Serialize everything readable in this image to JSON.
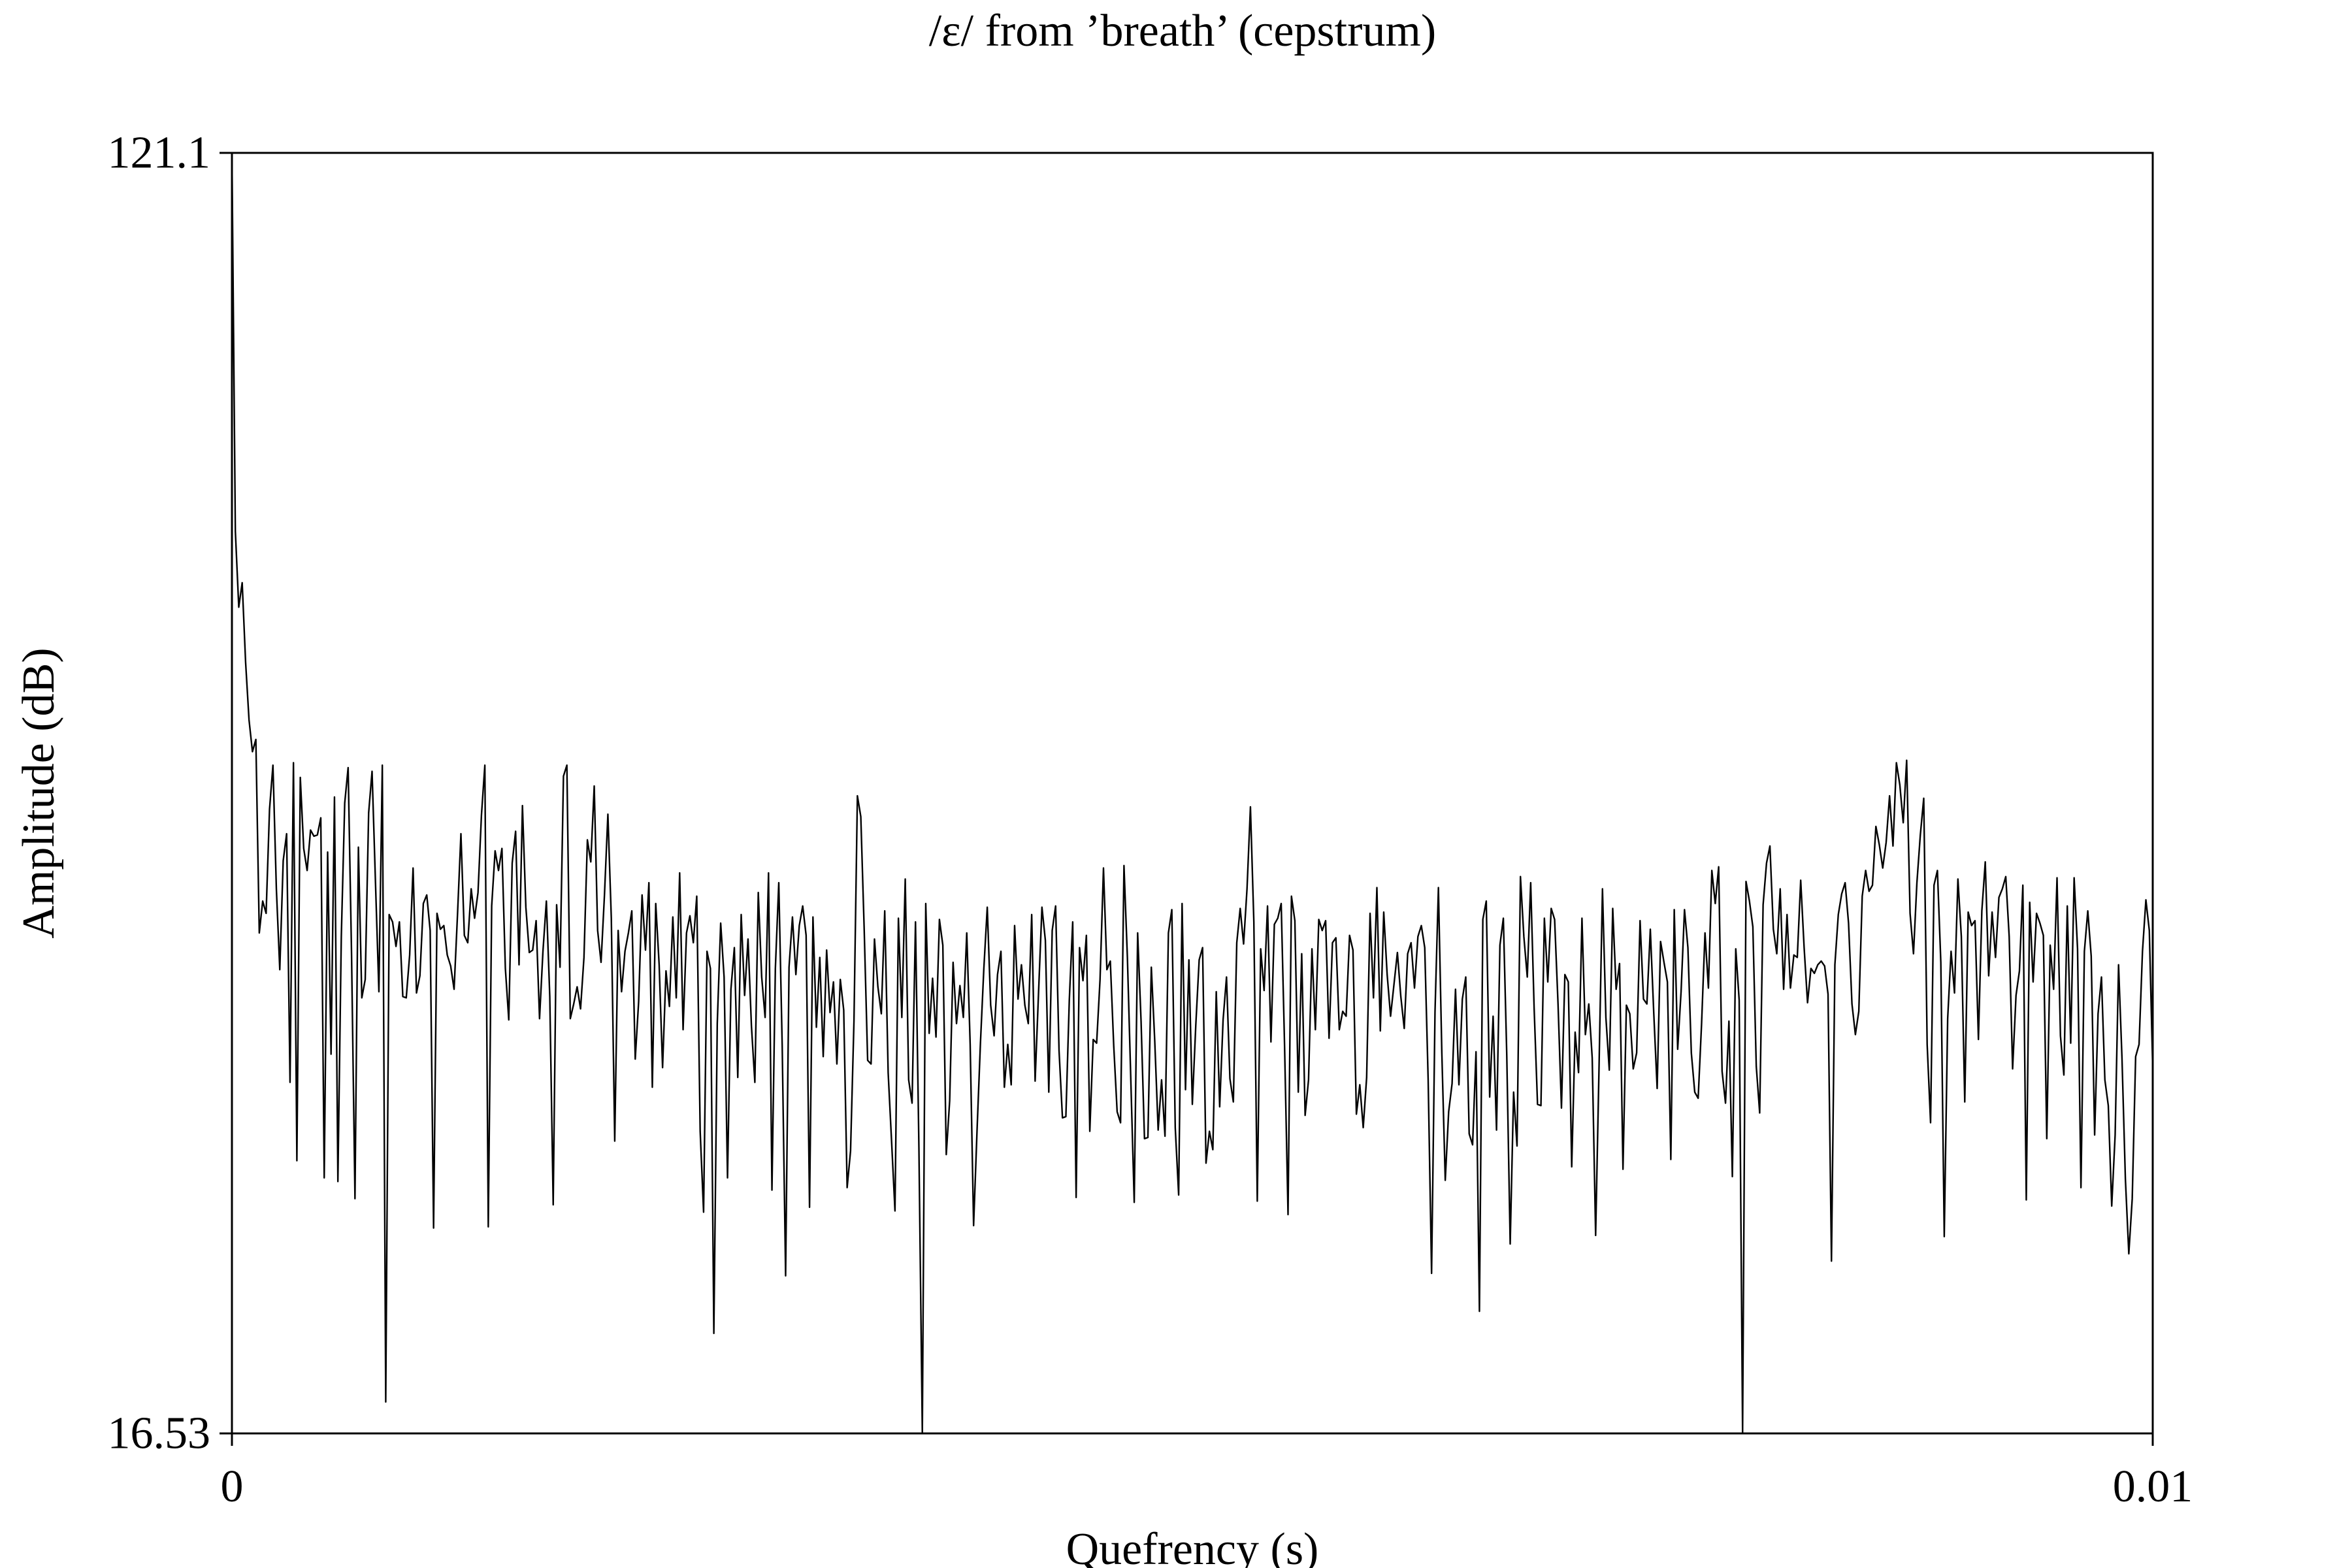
{
  "chart_data": {
    "type": "line",
    "title": "/ε/ from ’breath’ (cepstrum)",
    "xlabel": "Quefrency (s)",
    "ylabel": "Amplitude (dB)",
    "xlim": [
      0,
      0.01
    ],
    "ylim": [
      16.53,
      121.1
    ],
    "x_tick_labels": [
      "0",
      "0.01"
    ],
    "y_tick_labels": [
      "16.53",
      "121.1"
    ],
    "grid": false,
    "legend": "none",
    "line_color": "#000000",
    "series": [
      {
        "x_start": 0,
        "x_end": 0.01,
        "values": [
          121.1,
          90.2,
          84.0,
          86.0,
          79.5,
          74.8,
          72.2,
          73.2,
          57.4,
          60.0,
          59.0,
          67.5,
          71.1,
          61.0,
          54.4,
          63.3,
          65.5,
          45.2,
          71.3,
          38.8,
          70.1,
          64.3,
          62.5,
          65.8,
          65.3,
          65.4,
          66.8,
          37.4,
          64.0,
          47.5,
          68.5,
          37.1,
          57.1,
          68.0,
          70.9,
          55.6,
          35.7,
          64.4,
          52.1,
          53.6,
          67.2,
          70.6,
          61.5,
          52.6,
          71.1,
          19.1,
          58.9,
          58.3,
          56.3,
          58.3,
          52.2,
          52.1,
          55.6,
          62.7,
          52.5,
          53.9,
          59.8,
          60.5,
          57.6,
          33.3,
          59.0,
          57.7,
          58.0,
          55.6,
          54.7,
          52.8,
          58.9,
          65.5,
          57.2,
          56.6,
          61.0,
          58.6,
          60.7,
          67.0,
          71.1,
          33.4,
          59.6,
          64.1,
          62.5,
          64.3,
          54.5,
          50.3,
          63.1,
          65.7,
          54.8,
          67.8,
          59.5,
          55.8,
          56.0,
          58.4,
          50.4,
          55.9,
          60.0,
          52.2,
          35.2,
          59.7,
          54.6,
          70.2,
          71.1,
          50.4,
          51.6,
          53.0,
          51.2,
          55.4,
          65.0,
          63.2,
          69.4,
          57.6,
          55.0,
          60.5,
          67.1,
          58.6,
          40.4,
          57.6,
          52.6,
          55.9,
          57.4,
          59.2,
          47.1,
          51.8,
          60.5,
          56.0,
          61.5,
          44.8,
          59.8,
          54.8,
          46.4,
          54.3,
          51.4,
          58.7,
          52.1,
          62.3,
          49.5,
          57.4,
          58.8,
          56.6,
          60.4,
          41.2,
          34.6,
          55.9,
          54.5,
          24.7,
          50.0,
          58.2,
          53.8,
          37.4,
          52.8,
          56.2,
          45.6,
          58.9,
          52.3,
          56.9,
          49.8,
          45.2,
          60.7,
          53.8,
          50.5,
          62.3,
          36.4,
          54.5,
          61.5,
          48.2,
          29.4,
          54.6,
          58.7,
          54.0,
          58.0,
          59.6,
          57.2,
          35.0,
          58.7,
          49.7,
          55.4,
          47.3,
          56.0,
          50.9,
          53.4,
          46.7,
          53.6,
          51.1,
          36.6,
          39.6,
          50.2,
          68.6,
          66.9,
          57.6,
          47.0,
          46.7,
          56.9,
          53.0,
          50.8,
          59.2,
          46.0,
          40.4,
          34.7,
          58.6,
          50.5,
          61.8,
          45.4,
          43.5,
          58.3,
          39.9,
          16.53,
          59.8,
          49.2,
          53.7,
          48.9,
          58.5,
          56.4,
          39.3,
          43.7,
          55.0,
          50.0,
          53.1,
          50.5,
          57.4,
          48.3,
          33.5,
          41.2,
          48.4,
          54.5,
          59.5,
          51.5,
          49.0,
          54.0,
          55.9,
          44.8,
          48.3,
          45.0,
          58.0,
          52.0,
          54.8,
          51.5,
          50.0,
          58.9,
          45.3,
          52.5,
          59.5,
          56.8,
          44.4,
          57.6,
          59.6,
          47.8,
          42.3,
          42.4,
          51.9,
          58.3,
          35.8,
          56.2,
          53.5,
          57.2,
          41.2,
          48.7,
          48.4,
          53.6,
          62.7,
          54.4,
          55.1,
          48.2,
          42.8,
          41.9,
          62.9,
          55.4,
          45.4,
          35.4,
          57.4,
          50.2,
          40.6,
          40.7,
          54.6,
          48.6,
          41.3,
          45.4,
          40.8,
          57.4,
          59.3,
          41.5,
          36.0,
          59.8,
          44.6,
          55.2,
          43.4,
          49.8,
          55.2,
          56.2,
          38.6,
          41.2,
          39.7,
          52.6,
          43.2,
          50.3,
          53.8,
          45.5,
          43.6,
          56.6,
          59.4,
          56.5,
          61.0,
          67.7,
          58.3,
          35.5,
          56.1,
          52.7,
          59.6,
          48.5,
          58.1,
          58.6,
          59.8,
          48.0,
          34.4,
          60.4,
          58.4,
          44.4,
          55.7,
          42.5,
          45.4,
          56.1,
          49.5,
          58.5,
          57.6,
          58.4,
          48.8,
          56.6,
          57.0,
          49.5,
          51.0,
          50.6,
          57.2,
          56.0,
          42.6,
          45.0,
          41.5,
          45.6,
          59.0,
          52.1,
          61.1,
          49.4,
          59.1,
          54.0,
          50.6,
          53.2,
          55.8,
          52.2,
          49.6,
          55.7,
          56.6,
          52.9,
          57.1,
          58.0,
          56.2,
          45.4,
          29.6,
          50.9,
          61.1,
          47.6,
          37.2,
          42.8,
          45.1,
          52.8,
          45.0,
          52.0,
          53.8,
          41.0,
          40.1,
          47.7,
          26.5,
          58.5,
          60.0,
          44.0,
          50.6,
          41.3,
          56.4,
          58.6,
          47.4,
          32.0,
          44.4,
          40.0,
          62.0,
          57.1,
          53.8,
          61.5,
          51.3,
          43.4,
          43.3,
          58.6,
          53.4,
          59.4,
          58.5,
          51.6,
          43.1,
          54.0,
          53.4,
          38.3,
          49.3,
          46.0,
          58.6,
          49.1,
          51.6,
          47.2,
          32.7,
          46.5,
          61.0,
          50.5,
          46.2,
          59.4,
          52.8,
          54.9,
          38.1,
          51.5,
          50.8,
          46.3,
          47.6,
          58.4,
          52.0,
          51.6,
          57.7,
          50.9,
          44.7,
          56.7,
          55.0,
          53.4,
          38.9,
          59.3,
          47.9,
          52.6,
          59.3,
          56.2,
          47.6,
          44.4,
          43.9,
          50.0,
          57.4,
          52.9,
          62.5,
          59.8,
          62.8,
          46.1,
          43.5,
          50.2,
          37.5,
          56.1,
          51.9,
          16.53,
          61.6,
          60.0,
          57.9,
          46.5,
          42.7,
          59.7,
          63.1,
          64.5,
          57.7,
          55.7,
          61.0,
          52.8,
          58.9,
          52.9,
          55.6,
          55.4,
          61.7,
          56.2,
          51.7,
          54.5,
          54.1,
          54.8,
          55.1,
          54.7,
          52.4,
          30.6,
          54.8,
          58.9,
          60.6,
          61.5,
          58.2,
          51.6,
          49.1,
          51.0,
          60.4,
          62.5,
          60.8,
          61.3,
          66.1,
          64.6,
          62.7,
          64.8,
          68.6,
          64.5,
          71.3,
          69.5,
          66.4,
          71.5,
          59.0,
          55.7,
          61.5,
          65.4,
          68.4,
          48.3,
          41.9,
          61.3,
          62.5,
          55.0,
          32.6,
          50.4,
          55.9,
          52.5,
          61.8,
          57.1,
          43.6,
          59.1,
          58.0,
          58.4,
          48.7,
          59.2,
          63.2,
          53.9,
          59.1,
          55.4,
          60.3,
          61.0,
          62.0,
          57.1,
          46.3,
          52.3,
          54.3,
          61.3,
          35.6,
          59.9,
          53.4,
          59.0,
          58.2,
          57.2,
          40.6,
          56.4,
          52.8,
          61.9,
          49.0,
          45.8,
          59.6,
          48.4,
          61.9,
          56.1,
          36.6,
          55.9,
          59.2,
          55.5,
          40.9,
          50.8,
          53.8,
          45.4,
          43.3,
          35.1,
          40.9,
          54.8,
          47.2,
          37.3,
          31.2,
          35.7,
          47.3,
          48.3,
          55.9,
          60.1,
          57.6,
          46.3
        ]
      }
    ]
  }
}
